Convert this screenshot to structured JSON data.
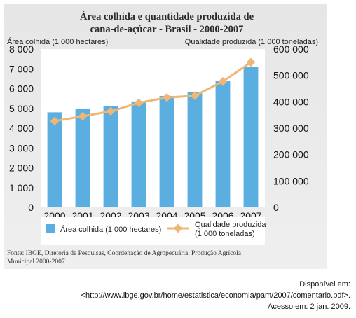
{
  "chart_data": {
    "type": "bar+line",
    "title_line1": "Área colhida e quantidade produzida de",
    "title_line2": "cana-de-açúcar - Brasil - 2000-2007",
    "categories": [
      "2000",
      "2001",
      "2002",
      "2003",
      "2004",
      "2005",
      "2006",
      "2007"
    ],
    "y_left_label": "Área colhida (1 000 hectares)",
    "y_right_label": "Qualidade produzida (1 000 toneladas)",
    "y_left_ticks": [
      "0",
      "1 000",
      "2 000",
      "3 000",
      "4 000",
      "5 000",
      "6 000",
      "7 000",
      "8 000"
    ],
    "y_right_ticks": [
      "0",
      "100 000",
      "200 000",
      "300 000",
      "400 000",
      "500 000",
      "600 000"
    ],
    "y_left_lim": [
      0,
      8000
    ],
    "y_right_lim": [
      0,
      600000
    ],
    "series": [
      {
        "name": "Área colhida (1 000 hectares)",
        "axis": "left",
        "kind": "bar",
        "color": "#5aaee0",
        "values": [
          4800,
          4960,
          5110,
          5350,
          5630,
          5810,
          6390,
          7080
        ]
      },
      {
        "name": "Qualidade produzida (1 000 toneladas)",
        "axis": "right",
        "kind": "line",
        "color": "#f0b676",
        "values": [
          327000,
          345000,
          364000,
          396000,
          416000,
          423000,
          477000,
          550000
        ]
      }
    ],
    "legend": [
      "Área colhida (1 000 hectares)",
      "Qualidade produzida",
      "(1 000 toneladas)"
    ],
    "source_line1": "Fonte: IBGE, Diretoria de Pesquisas, Coordenação de Agropecuária, Produção Agrícola",
    "source_line2": "Municipal 2000-2007."
  },
  "attribution": {
    "line1": "Disponível em:",
    "line2": "<http://www.ibge.gov.br/home/estatistica/economia/pam/2007/comentario.pdf>.",
    "line3": "Acesso em: 2 jan. 2009."
  }
}
